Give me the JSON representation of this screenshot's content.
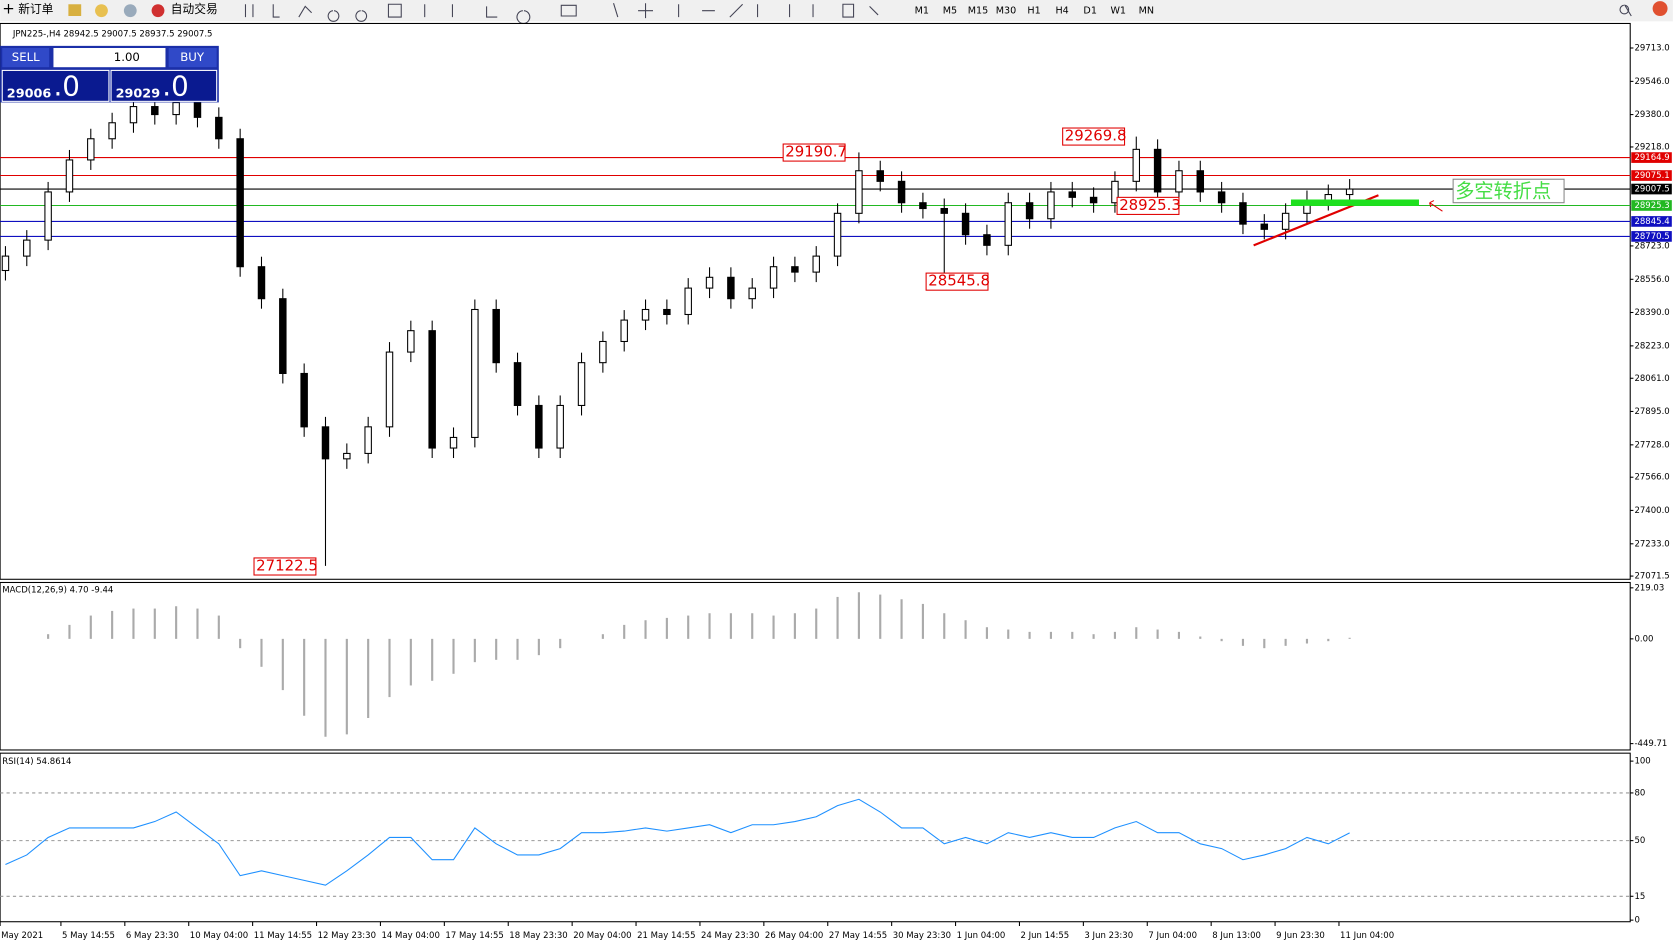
{
  "toolbar": {
    "new_order": "新订单",
    "auto_trading": "自动交易",
    "periods": [
      "M1",
      "M5",
      "M15",
      "M30",
      "H1",
      "H4",
      "D1",
      "W1",
      "MN"
    ]
  },
  "trade_panel": {
    "sell": "SELL",
    "lots": "1.00",
    "buy": "BUY",
    "bid": "29006",
    "bid_frac": ".0",
    "ask": "29029",
    "ask_frac": ".0"
  },
  "chart": {
    "type": "candlestick",
    "title": "JPN225-,H4  28942.5 29007.5 28937.5 29007.5",
    "ylim": [
      27055.5,
      29825
    ],
    "yticks": [
      {
        "value": 29713,
        "label": "29713.0"
      },
      {
        "value": 29546,
        "label": "29546.0"
      },
      {
        "value": 29380,
        "label": "29380.0"
      },
      {
        "value": 29218,
        "label": "29218.0"
      },
      {
        "value": 28723,
        "label": "28723.0"
      },
      {
        "value": 28556,
        "label": "28556.0"
      },
      {
        "value": 28390,
        "label": "28390.0"
      },
      {
        "value": 28223,
        "label": "28223.0"
      },
      {
        "value": 28061,
        "label": "28061.0"
      },
      {
        "value": 27895,
        "label": "27895.0"
      },
      {
        "value": 27728,
        "label": "27728.0"
      },
      {
        "value": 27566,
        "label": "27566.0"
      },
      {
        "value": 27400,
        "label": "27400.0"
      },
      {
        "value": 27233,
        "label": "27233.0"
      },
      {
        "value": 27071.5,
        "label": "27071.5"
      }
    ],
    "open": [
      28600,
      28672,
      28752,
      28993,
      29153,
      29259,
      29339,
      29420,
      29380,
      29440,
      29366,
      29259,
      28619,
      28459,
      28085,
      27818,
      27658,
      27685,
      27818,
      28192,
      28299,
      27712,
      27765,
      28405,
      28139,
      27925,
      27712,
      27925,
      28139,
      28245,
      28352,
      28405,
      28380,
      28512,
      28566,
      28459,
      28512,
      28619,
      28592,
      28672,
      28886,
      29099,
      29046,
      28939,
      28910,
      28886,
      28779,
      28726,
      28939,
      28859,
      28993,
      28966,
      28939,
      29046,
      29206,
      28993,
      29099,
      28993,
      28939,
      28832,
      28806,
      28886,
      28950,
      28980
    ],
    "high": [
      28722,
      28802,
      29043,
      29203,
      29309,
      29389,
      29470,
      29470,
      29490,
      29490,
      29416,
      29309,
      28669,
      28509,
      28135,
      27868,
      27735,
      27868,
      28242,
      28349,
      28349,
      27815,
      28455,
      28455,
      28189,
      27975,
      27975,
      28189,
      28295,
      28402,
      28455,
      28455,
      28562,
      28616,
      28616,
      28562,
      28669,
      28669,
      28722,
      28936,
      29190.7,
      29149,
      29096,
      28989,
      28960,
      28936,
      28829,
      28989,
      28989,
      29043,
      29043,
      29016,
      29096,
      29269.8,
      29256,
      29149,
      29149,
      29043,
      28989,
      28882,
      28936,
      29000,
      29030,
      29057.5
    ],
    "low": [
      28550,
      28622,
      28702,
      28943,
      29103,
      29209,
      29289,
      29330,
      29330,
      29316,
      29209,
      28569,
      28409,
      28035,
      27768,
      27122.5,
      27608,
      27635,
      27768,
      28142,
      27662,
      27662,
      27715,
      28089,
      27875,
      27662,
      27662,
      27875,
      28089,
      28195,
      28302,
      28330,
      28330,
      28462,
      28409,
      28409,
      28462,
      28542,
      28542,
      28622,
      28836,
      28996,
      28889,
      28860,
      28545.8,
      28729,
      28676,
      28676,
      28809,
      28809,
      28916,
      28889,
      28889,
      28996,
      28943,
      28943,
      28943,
      28889,
      28782,
      28756,
      28756,
      28836,
      28900,
      28930
    ],
    "close": [
      28672,
      28752,
      28993,
      29153,
      29259,
      29339,
      29420,
      29380,
      29440,
      29366,
      29259,
      28619,
      28459,
      28085,
      27818,
      27658,
      27685,
      27818,
      28192,
      28299,
      27712,
      27765,
      28405,
      28139,
      27925,
      27712,
      27925,
      28139,
      28245,
      28352,
      28405,
      28380,
      28512,
      28566,
      28459,
      28512,
      28619,
      28592,
      28672,
      28886,
      29099,
      29046,
      28939,
      28910,
      28886,
      28779,
      28726,
      28939,
      28859,
      28993,
      28966,
      28939,
      29046,
      29206,
      28993,
      29099,
      28993,
      28939,
      28832,
      28806,
      28886,
      28950,
      28980,
      29007.5
    ],
    "levels": [
      {
        "value": 29164.9,
        "color": "#e00000"
      },
      {
        "value": 29075.1,
        "color": "#e00000"
      },
      {
        "value": 29007.5,
        "color": "#000000"
      },
      {
        "value": 28925.3,
        "color": "#22b822"
      },
      {
        "value": 28845.4,
        "color": "#1010c0"
      },
      {
        "value": 28770.5,
        "color": "#1010c0"
      }
    ],
    "annotations": [
      "29190.7",
      "29269.8",
      "28925.3",
      "28545.8",
      "27122.5",
      "多空转折点"
    ],
    "time_labels": [
      "May 2021",
      "5 May 14:55",
      "6 May 23:30",
      "10 May 04:00",
      "11 May 14:55",
      "12 May 23:30",
      "14 May 04:00",
      "17 May 14:55",
      "18 May 23:30",
      "20 May 04:00",
      "21 May 14:55",
      "24 May 23:30",
      "26 May 04:00",
      "27 May 14:55",
      "30 May 23:30",
      "1 Jun 04:00",
      "2 Jun 14:55",
      "3 Jun 23:30",
      "7 Jun 04:00",
      "8 Jun 13:00",
      "9 Jun 23:30",
      "11 Jun 04:00"
    ]
  },
  "macd": {
    "type": "bar",
    "title": "MACD(12,26,9) 4.70 -9.44",
    "ylim": [
      -477,
      242
    ],
    "yticks": [
      219.03,
      {
        "value": 0,
        "label": "0.00"
      },
      -449.71
    ],
    "values": [
      0,
      0,
      20,
      60,
      100,
      120,
      130,
      130,
      140,
      130,
      100,
      -40,
      -120,
      -220,
      -330,
      -420,
      -410,
      -340,
      -250,
      -200,
      -180,
      -150,
      -100,
      -90,
      -90,
      -70,
      -40,
      0,
      20,
      60,
      80,
      90,
      100,
      110,
      110,
      110,
      100,
      110,
      130,
      180,
      200,
      190,
      170,
      150,
      110,
      80,
      50,
      40,
      30,
      30,
      30,
      20,
      30,
      50,
      40,
      30,
      10,
      -10,
      -30,
      -40,
      -30,
      -20,
      -10,
      4.7
    ]
  },
  "rsi": {
    "type": "line",
    "title": "RSI(14) 54.8614",
    "ylim": [
      -1,
      105
    ],
    "color": "#1e90ff",
    "yticks": [
      100,
      80,
      50,
      15,
      0
    ],
    "values": [
      35,
      41,
      52,
      58,
      58,
      58,
      58,
      62,
      68,
      58,
      48,
      28,
      31,
      28,
      25,
      22,
      31,
      41,
      52,
      52,
      38,
      38,
      58,
      48,
      41,
      41,
      45,
      55,
      55,
      56,
      58,
      56,
      58,
      60,
      55,
      60,
      60,
      62,
      65,
      72,
      76,
      68,
      58,
      58,
      48,
      52,
      48,
      55,
      52,
      55,
      52,
      52,
      58,
      62,
      55,
      55,
      48,
      45,
      38,
      41,
      45,
      52,
      48,
      54.8614
    ]
  }
}
